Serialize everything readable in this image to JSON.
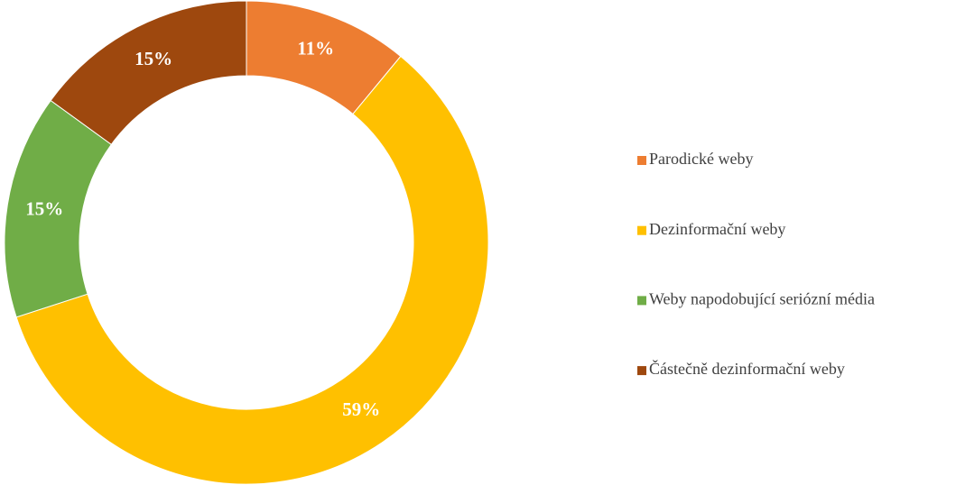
{
  "chart_data": {
    "type": "donut",
    "categories": [
      "Parodické weby",
      "Dezinformační weby",
      "Weby napodobující seriózní média",
      "Částečně dezinformační weby"
    ],
    "values": [
      11,
      59,
      15,
      15
    ],
    "value_labels": [
      "11%",
      "59%",
      "15%",
      "15%"
    ],
    "colors": [
      "#ed7d31",
      "#ffc000",
      "#70ad47",
      "#9e480e"
    ],
    "legend": "right"
  }
}
